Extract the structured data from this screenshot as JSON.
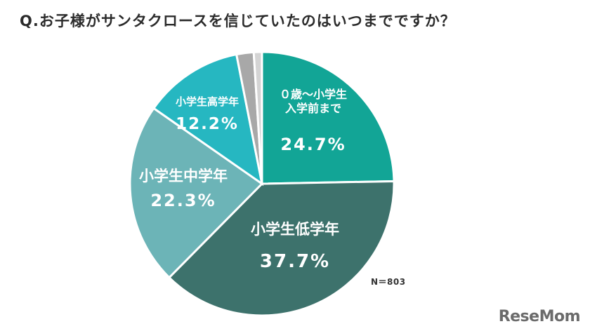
{
  "question": "Q.お子様がサンタクロースを信じていたのはいつまでですか？",
  "note": "N＝803",
  "brand": "ReseMom",
  "chart_data": {
    "type": "pie",
    "title": "Q.お子様がサンタクロースを信じていたのはいつまでですか？",
    "slices": [
      {
        "label": "０歳～小学生入学前まで",
        "label_lines": [
          "０歳～小学生",
          "入学前まで"
        ],
        "value": 24.7,
        "value_label": "24.7%",
        "color": "#12a596"
      },
      {
        "label": "小学生低学年",
        "label_lines": [
          "小学生低学年"
        ],
        "value": 37.7,
        "value_label": "37.7%",
        "color": "#3d726c"
      },
      {
        "label": "小学生中学年",
        "label_lines": [
          "小学生中学年"
        ],
        "value": 22.3,
        "value_label": "22.3%",
        "color": "#6cb4b7"
      },
      {
        "label": "小学生高学年",
        "label_lines": [
          "小学生高学年"
        ],
        "value": 12.2,
        "value_label": "12.2%",
        "color": "#26b7c1"
      },
      {
        "label": "",
        "label_lines": [],
        "value": 2.1,
        "value_label": "",
        "color": "#a8a8a8"
      },
      {
        "label": "",
        "label_lines": [],
        "value": 1.0,
        "value_label": "",
        "color": "#d4d4d4"
      }
    ]
  }
}
